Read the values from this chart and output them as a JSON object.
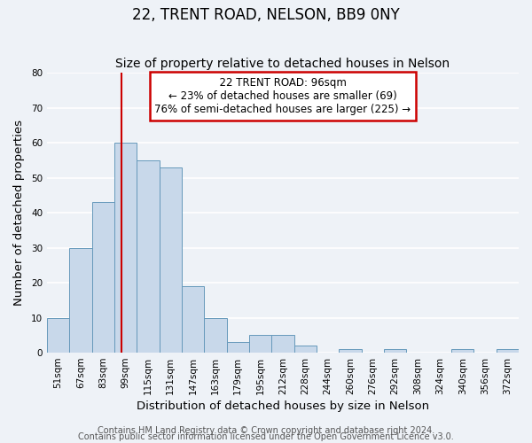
{
  "title": "22, TRENT ROAD, NELSON, BB9 0NY",
  "subtitle": "Size of property relative to detached houses in Nelson",
  "xlabel": "Distribution of detached houses by size in Nelson",
  "ylabel": "Number of detached properties",
  "bar_labels": [
    "51sqm",
    "67sqm",
    "83sqm",
    "99sqm",
    "115sqm",
    "131sqm",
    "147sqm",
    "163sqm",
    "179sqm",
    "195sqm",
    "212sqm",
    "228sqm",
    "244sqm",
    "260sqm",
    "276sqm",
    "292sqm",
    "308sqm",
    "324sqm",
    "340sqm",
    "356sqm",
    "372sqm"
  ],
  "bar_heights": [
    10,
    30,
    43,
    60,
    55,
    53,
    19,
    10,
    3,
    5,
    5,
    2,
    0,
    1,
    0,
    1,
    0,
    0,
    1,
    0,
    1
  ],
  "bar_color": "#c8d8ea",
  "bar_edge_color": "#6699bb",
  "ylim": [
    0,
    80
  ],
  "yticks": [
    0,
    10,
    20,
    30,
    40,
    50,
    60,
    70,
    80
  ],
  "annotation_text_line1": "22 TRENT ROAD: 96sqm",
  "annotation_text_line2": "← 23% of detached houses are smaller (69)",
  "annotation_text_line3": "76% of semi-detached houses are larger (225) →",
  "footnote1": "Contains HM Land Registry data © Crown copyright and database right 2024.",
  "footnote2": "Contains public sector information licensed under the Open Government Licence v3.0.",
  "background_color": "#eef2f7",
  "plot_background_color": "#eef2f7",
  "grid_color": "#ffffff",
  "annotation_box_color": "#ffffff",
  "annotation_box_edge": "#cc0000",
  "title_fontsize": 12,
  "subtitle_fontsize": 10,
  "axis_label_fontsize": 9.5,
  "tick_fontsize": 7.5,
  "annotation_fontsize": 8.5,
  "footnote_fontsize": 7
}
